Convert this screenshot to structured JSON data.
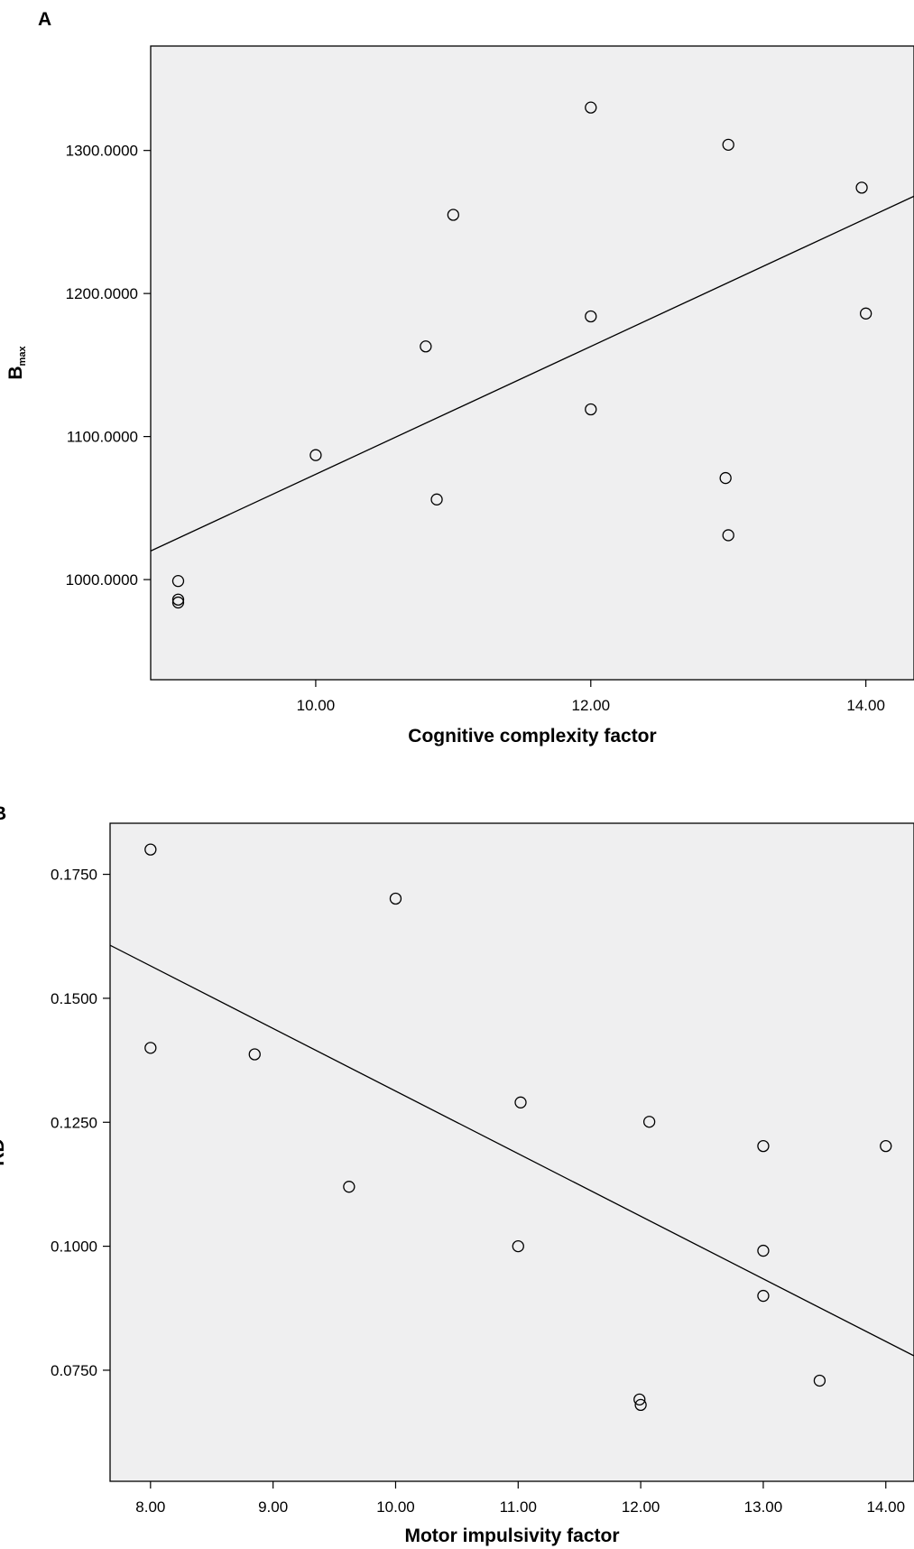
{
  "chart_data": [
    {
      "type": "scatter",
      "panel": "A",
      "xlabel": "Cognitive complexity factor",
      "ylabel": {
        "main": "B",
        "sub": "max"
      },
      "xlim": [
        8.8,
        14.35
      ],
      "ylim": [
        930,
        1373
      ],
      "x_ticks": [
        {
          "value": 10,
          "label": "10.00"
        },
        {
          "value": 12,
          "label": "12.00"
        },
        {
          "value": 14,
          "label": "14.00"
        }
      ],
      "y_ticks": [
        {
          "value": 1000,
          "label": "1000.0000"
        },
        {
          "value": 1100,
          "label": "1100.0000"
        },
        {
          "value": 1200,
          "label": "1200.0000"
        },
        {
          "value": 1300,
          "label": "1300.0000"
        }
      ],
      "points": [
        {
          "x": 9.0,
          "y": 999
        },
        {
          "x": 9.0,
          "y": 986
        },
        {
          "x": 9.0,
          "y": 984
        },
        {
          "x": 10.0,
          "y": 1087
        },
        {
          "x": 10.8,
          "y": 1163
        },
        {
          "x": 10.88,
          "y": 1056
        },
        {
          "x": 11.0,
          "y": 1255
        },
        {
          "x": 12.0,
          "y": 1330
        },
        {
          "x": 12.0,
          "y": 1184
        },
        {
          "x": 12.0,
          "y": 1119
        },
        {
          "x": 12.98,
          "y": 1071
        },
        {
          "x": 13.0,
          "y": 1304
        },
        {
          "x": 13.0,
          "y": 1031
        },
        {
          "x": 13.97,
          "y": 1274
        },
        {
          "x": 14.0,
          "y": 1186
        }
      ],
      "fit_line": {
        "x": [
          8.8,
          14.35
        ],
        "y": [
          1020,
          1268
        ]
      },
      "grid": false,
      "plot_background": "#efeff0"
    },
    {
      "type": "scatter",
      "panel": "B",
      "xlabel": "Motor impulsivity factor",
      "ylabel": {
        "main": "RD",
        "sub": ""
      },
      "xlim": [
        7.67,
        14.23
      ],
      "ylim": [
        0.0526,
        0.1853
      ],
      "x_ticks": [
        {
          "value": 8,
          "label": "8.00"
        },
        {
          "value": 9,
          "label": "9.00"
        },
        {
          "value": 10,
          "label": "10.00"
        },
        {
          "value": 11,
          "label": "11.00"
        },
        {
          "value": 12,
          "label": "12.00"
        },
        {
          "value": 13,
          "label": "13.00"
        },
        {
          "value": 14,
          "label": "14.00"
        }
      ],
      "y_ticks": [
        {
          "value": 0.075,
          "label": "0.0750"
        },
        {
          "value": 0.1,
          "label": "0.1000"
        },
        {
          "value": 0.125,
          "label": "0.1250"
        },
        {
          "value": 0.15,
          "label": "0.1500"
        },
        {
          "value": 0.175,
          "label": "0.1750"
        }
      ],
      "points": [
        {
          "x": 8.0,
          "y": 0.18
        },
        {
          "x": 8.0,
          "y": 0.14
        },
        {
          "x": 8.85,
          "y": 0.1387
        },
        {
          "x": 9.62,
          "y": 0.112
        },
        {
          "x": 10.0,
          "y": 0.1701
        },
        {
          "x": 11.0,
          "y": 0.1
        },
        {
          "x": 11.02,
          "y": 0.129
        },
        {
          "x": 11.99,
          "y": 0.0691
        },
        {
          "x": 12.0,
          "y": 0.068
        },
        {
          "x": 12.07,
          "y": 0.1251
        },
        {
          "x": 13.0,
          "y": 0.1202
        },
        {
          "x": 13.0,
          "y": 0.0991
        },
        {
          "x": 13.0,
          "y": 0.09
        },
        {
          "x": 13.46,
          "y": 0.0729
        },
        {
          "x": 14.0,
          "y": 0.1202
        }
      ],
      "fit_line": {
        "x": [
          7.67,
          14.23
        ],
        "y": [
          0.1607,
          0.0779
        ]
      },
      "grid": false,
      "plot_background": "#efeff0"
    }
  ]
}
